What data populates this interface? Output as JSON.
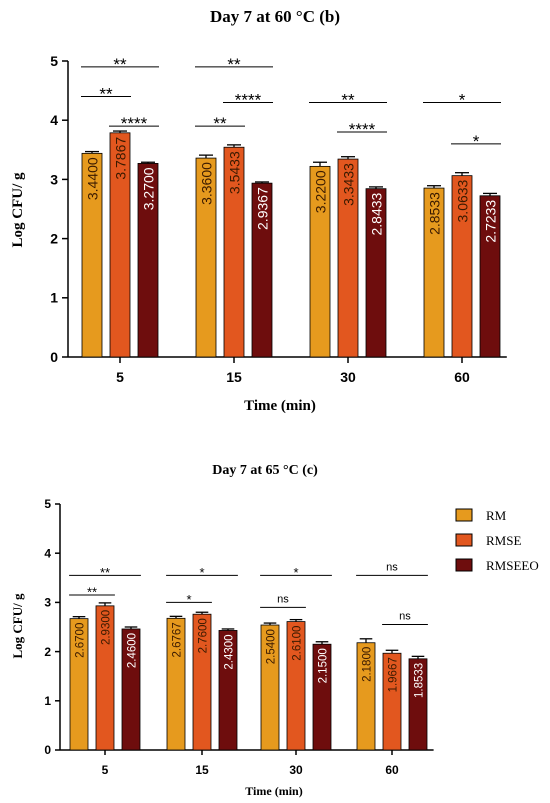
{
  "colors": {
    "RM": "#e69a1e",
    "RMSE": "#e2571f",
    "RMSEEO": "#6e0d0d"
  },
  "legend": {
    "items": [
      "RM",
      "RMSE",
      "RMSEEO"
    ]
  },
  "chart_data": [
    {
      "type": "bar",
      "title": "Day 7 at 60 °C (b)",
      "xlabel": "Time (min)",
      "ylabel": "Log CFU/ g",
      "ylim": [
        0,
        5
      ],
      "yticks": [
        0,
        1,
        2,
        3,
        4,
        5
      ],
      "categories": [
        "5",
        "15",
        "30",
        "60"
      ],
      "series": [
        {
          "name": "RM",
          "values": [
            3.44,
            3.36,
            3.22,
            2.8533
          ],
          "labels": [
            "3.4400",
            "3.3600",
            "3.2200",
            "2.8533"
          ],
          "errors": [
            0.03,
            0.05,
            0.07,
            0.04
          ]
        },
        {
          "name": "RMSE",
          "values": [
            3.7867,
            3.5433,
            3.3433,
            3.0633
          ],
          "labels": [
            "3.7867",
            "3.5433",
            "3.3433",
            "3.0633"
          ],
          "errors": [
            0.03,
            0.04,
            0.04,
            0.05
          ]
        },
        {
          "name": "RMSEEO",
          "values": [
            3.27,
            2.9367,
            2.8433,
            2.7233
          ],
          "labels": [
            "3.2700",
            "2.9367",
            "2.8433",
            "2.7233"
          ],
          "errors": [
            0.02,
            0.02,
            0.03,
            0.04
          ]
        }
      ],
      "significance": [
        {
          "group": 0,
          "from": 0,
          "to": 1,
          "y": 4.4,
          "label": "**"
        },
        {
          "group": 0,
          "from": 0,
          "to": 2,
          "y": 4.9,
          "label": "**"
        },
        {
          "group": 0,
          "from": 1,
          "to": 2,
          "y": 3.9,
          "label": "****"
        },
        {
          "group": 1,
          "from": 0,
          "to": 1,
          "y": 3.9,
          "label": "**"
        },
        {
          "group": 1,
          "from": 0,
          "to": 2,
          "y": 4.9,
          "label": "**"
        },
        {
          "group": 1,
          "from": 1,
          "to": 2,
          "y": 4.3,
          "label": "****"
        },
        {
          "group": 2,
          "from": 0,
          "to": 2,
          "y": 4.3,
          "label": "**"
        },
        {
          "group": 2,
          "from": 1,
          "to": 2,
          "y": 3.8,
          "label": "****"
        },
        {
          "group": 3,
          "from": 0,
          "to": 2,
          "y": 4.3,
          "label": "*"
        },
        {
          "group": 3,
          "from": 1,
          "to": 2,
          "y": 3.6,
          "label": "*"
        }
      ]
    },
    {
      "type": "bar",
      "title": "Day 7 at 65 °C (c)",
      "xlabel": "Time (min)",
      "ylabel": "Log CFU/ g",
      "ylim": [
        0,
        5
      ],
      "yticks": [
        0,
        1,
        2,
        3,
        4,
        5
      ],
      "categories": [
        "5",
        "15",
        "30",
        "60"
      ],
      "series": [
        {
          "name": "RM",
          "values": [
            2.67,
            2.6767,
            2.54,
            2.18
          ],
          "labels": [
            "2.6700",
            "2.6767",
            "2.5400",
            "2.1800"
          ],
          "errors": [
            0.04,
            0.04,
            0.04,
            0.08
          ]
        },
        {
          "name": "RMSE",
          "values": [
            2.93,
            2.76,
            2.61,
            1.9667
          ],
          "labels": [
            "2.9300",
            "2.7600",
            "2.6100",
            "1.9667"
          ],
          "errors": [
            0.06,
            0.04,
            0.04,
            0.06
          ]
        },
        {
          "name": "RMSEEO",
          "values": [
            2.46,
            2.43,
            2.15,
            1.8533
          ],
          "labels": [
            "2.4600",
            "2.4300",
            "2.1500",
            "1.8533"
          ],
          "errors": [
            0.04,
            0.03,
            0.05,
            0.05
          ]
        }
      ],
      "significance": [
        {
          "group": 0,
          "from": 0,
          "to": 1,
          "y": 3.15,
          "label": "**"
        },
        {
          "group": 0,
          "from": 0,
          "to": 2,
          "y": 3.55,
          "label": "**"
        },
        {
          "group": 1,
          "from": 0,
          "to": 1,
          "y": 3.0,
          "label": "*"
        },
        {
          "group": 1,
          "from": 0,
          "to": 2,
          "y": 3.55,
          "label": "*"
        },
        {
          "group": 2,
          "from": 0,
          "to": 1,
          "y": 2.9,
          "label": "ns"
        },
        {
          "group": 2,
          "from": 0,
          "to": 2,
          "y": 3.55,
          "label": "*"
        },
        {
          "group": 3,
          "from": 1,
          "to": 2,
          "y": 2.55,
          "label": "ns"
        },
        {
          "group": 3,
          "from": 0,
          "to": 2,
          "y": 3.55,
          "label": "ns"
        }
      ]
    }
  ]
}
